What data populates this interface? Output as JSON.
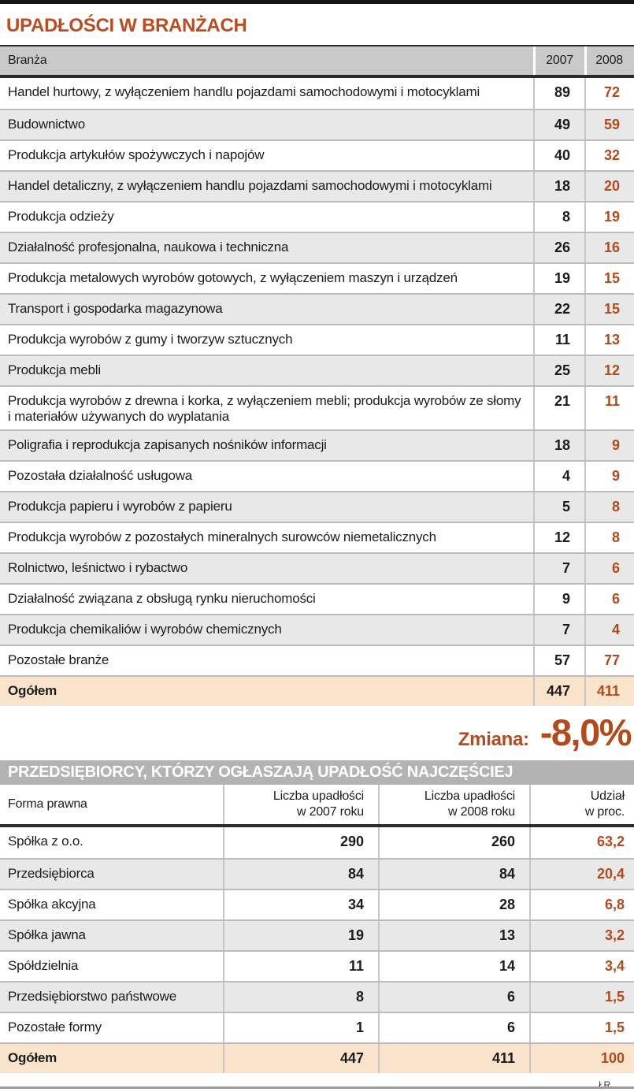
{
  "credit": "ŁR",
  "colors": {
    "accent_rust": "#b4491c",
    "title_rust": "#bf4a1c",
    "header_gray": "#c9c9c9",
    "row_alt_gray": "#e8e8e8",
    "total_peach": "#fae3cb",
    "titlebar_gray": "#b3b3b3",
    "dark_line": "#2b2b2b"
  },
  "chart_data": [
    {
      "type": "table",
      "title": "UPADŁOŚCI W BRANŻACH",
      "columns": [
        "Branża",
        "2007",
        "2008"
      ],
      "rows": [
        [
          "Handel hurtowy, z wyłączeniem handlu pojazdami samochodowymi i motocyklami",
          "89",
          "72"
        ],
        [
          "Budownictwo",
          "49",
          "59"
        ],
        [
          "Produkcja artykułów spożywczych i napojów",
          "40",
          "32"
        ],
        [
          "Handel detaliczny, z wyłączeniem handlu pojazdami samochodowymi i motocyklami",
          "18",
          "20"
        ],
        [
          "Produkcja odzieży",
          "8",
          "19"
        ],
        [
          "Działalność profesjonalna, naukowa i techniczna",
          "26",
          "16"
        ],
        [
          "Produkcja metalowych wyrobów gotowych, z wyłączeniem maszyn i urządzeń",
          "19",
          "15"
        ],
        [
          "Transport i gospodarka magazynowa",
          "22",
          "15"
        ],
        [
          "Produkcja wyrobów z gumy i tworzyw sztucznych",
          "11",
          "13"
        ],
        [
          "Produkcja mebli",
          "25",
          "12"
        ],
        [
          "Produkcja wyrobów z drewna i korka, z wyłączeniem mebli; produkcja wyrobów ze słomy i materiałów używanych do wyplatania",
          "21",
          "11"
        ],
        [
          "Poligrafia i reprodukcja zapisanych nośników informacji",
          "18",
          "9"
        ],
        [
          "Pozostała działalność usługowa",
          "4",
          "9"
        ],
        [
          "Produkcja papieru i wyrobów z papieru",
          "5",
          "8"
        ],
        [
          "Produkcja wyrobów z pozostałych mineralnych surowców niemetalicznych",
          "12",
          "8"
        ],
        [
          "Rolnictwo, leśnictwo i rybactwo",
          "7",
          "6"
        ],
        [
          "Działalność związana z obsługą rynku nieruchomości",
          "9",
          "6"
        ],
        [
          "Produkcja chemikaliów i wyrobów chemicznych",
          "7",
          "4"
        ],
        [
          "Pozostałe branże",
          "57",
          "77"
        ]
      ],
      "total": [
        "Ogółem",
        "447",
        "411"
      ],
      "annotation": {
        "label": "Zmiana:",
        "value": "-8,0%"
      }
    },
    {
      "type": "table",
      "title": "PRZEDSIĘBIORCY, KTÓRZY OGŁASZAJĄ UPADŁOŚĆ NAJCZĘŚCIEJ",
      "columns": [
        "Forma prawna",
        "Liczba upadłości\nw 2007 roku",
        "Liczba upadłości\nw 2008 roku",
        "Udział\nw proc."
      ],
      "rows": [
        [
          "Spółka z o.o.",
          "290",
          "260",
          "63,2"
        ],
        [
          "Przedsiębiorca",
          "84",
          "84",
          "20,4"
        ],
        [
          "Spółka akcyjna",
          "34",
          "28",
          "6,8"
        ],
        [
          "Spółka jawna",
          "19",
          "13",
          "3,2"
        ],
        [
          "Spółdzielnia",
          "11",
          "14",
          "3,4"
        ],
        [
          "Przedsiębiorstwo państwowe",
          "8",
          "6",
          "1,5"
        ],
        [
          "Pozostałe formy",
          "1",
          "6",
          "1,5"
        ]
      ],
      "total": [
        "Ogółem",
        "447",
        "411",
        "100"
      ]
    }
  ]
}
